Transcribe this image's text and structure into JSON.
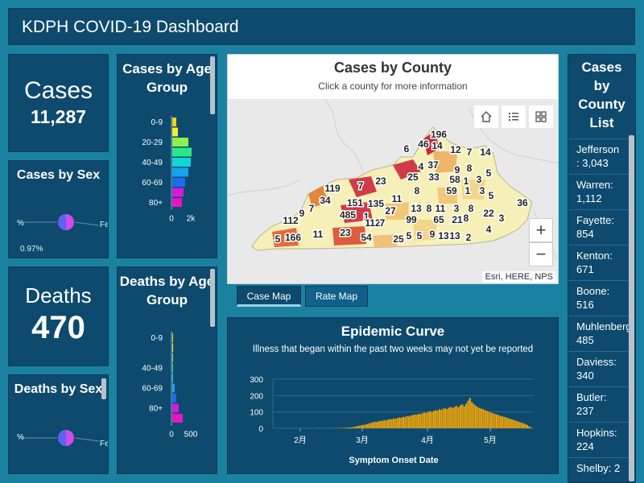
{
  "header": {
    "title": "KDPH COVID-19 Dashboard"
  },
  "cases": {
    "label": "Cases",
    "value": "11,287"
  },
  "deaths": {
    "label": "Deaths",
    "value": "470"
  },
  "cases_by_sex": {
    "title": "Cases by Sex",
    "left_label": "%",
    "right_label": "Fe",
    "pct_label": "0.97%"
  },
  "deaths_by_sex": {
    "title": "Deaths by Sex",
    "left_label": "%",
    "right_label": "Fe"
  },
  "cases_age": {
    "title": "Cases by Age Group",
    "visible_labels": [
      "0-9",
      "20-29",
      "40-49",
      "60-69",
      "80+"
    ],
    "x_ticks": [
      "0",
      "2k"
    ],
    "colors": [
      "#f1d319",
      "#f6ef2a",
      "#8ff04d",
      "#27e88a",
      "#10d6d6",
      "#15a6ec",
      "#1c6bf2",
      "#d41bd9",
      "#e815c5"
    ]
  },
  "deaths_age": {
    "title": "Deaths by Age Group",
    "visible_labels": [
      "0-9",
      "40-49",
      "60-69",
      "80+"
    ],
    "x_ticks": [
      "0",
      "500"
    ],
    "colors": [
      "#f1d319",
      "#f6ef2a",
      "#8ff04d",
      "#27e88a",
      "#10d6d6",
      "#15a6ec",
      "#1c6bf2",
      "#d41bd9",
      "#e815c5"
    ]
  },
  "map": {
    "title": "Cases by County",
    "subtitle": "Click a county for more information",
    "attribution": "Esri, HERE, NPS",
    "zoom_in": "+",
    "zoom_out": "−",
    "county_labels": [
      {
        "t": "196"
      },
      {
        "t": "46"
      },
      {
        "t": "14"
      },
      {
        "t": "12"
      },
      {
        "t": "7"
      },
      {
        "t": "14"
      },
      {
        "t": "6"
      },
      {
        "t": "37"
      },
      {
        "t": "4"
      },
      {
        "t": "9"
      },
      {
        "t": "8"
      },
      {
        "t": "5"
      },
      {
        "t": "25"
      },
      {
        "t": "33"
      },
      {
        "t": "58"
      },
      {
        "t": "1"
      },
      {
        "t": "3"
      },
      {
        "t": "119"
      },
      {
        "t": "7"
      },
      {
        "t": "23"
      },
      {
        "t": "8"
      },
      {
        "t": "59"
      },
      {
        "t": "1"
      },
      {
        "t": "3"
      },
      {
        "t": "5"
      },
      {
        "t": "34"
      },
      {
        "t": "151"
      },
      {
        "t": "135"
      },
      {
        "t": "11"
      },
      {
        "t": "36"
      },
      {
        "t": "112"
      },
      {
        "t": "9"
      },
      {
        "t": "7"
      },
      {
        "t": "485"
      },
      {
        "t": "1"
      },
      {
        "t": "27"
      },
      {
        "t": "13"
      },
      {
        "t": "8"
      },
      {
        "t": "11"
      },
      {
        "t": "3"
      },
      {
        "t": "8"
      },
      {
        "t": "22"
      },
      {
        "t": "3"
      },
      {
        "t": "112"
      },
      {
        "t": "7"
      },
      {
        "t": "99"
      },
      {
        "t": "65"
      },
      {
        "t": "21"
      },
      {
        "t": "8"
      },
      {
        "t": "5"
      },
      {
        "t": "166"
      },
      {
        "t": "11"
      },
      {
        "t": "23"
      },
      {
        "t": "54"
      },
      {
        "t": "25"
      },
      {
        "t": "5"
      },
      {
        "t": "5"
      },
      {
        "t": "9"
      },
      {
        "t": "13"
      },
      {
        "t": "13"
      },
      {
        "t": "2"
      },
      {
        "t": "4"
      }
    ]
  },
  "tabs": {
    "case_map": "Case Map",
    "rate_map": "Rate Map"
  },
  "curve": {
    "title": "Epidemic Curve",
    "subtitle": "Illness that began within the past two weeks may not yet be reported",
    "xlabel": "Symptom Onset Date"
  },
  "county_list": {
    "title": "Cases by County List",
    "items": [
      "Jefferson : 3,043",
      "Warren: 1,112",
      "Fayette: 854",
      "Kenton: 671",
      "Boone: 516",
      "Muhlenberg: 485",
      "Daviess: 340",
      "Butler: 237",
      "Hopkins: 224",
      "Shelby: 2"
    ]
  },
  "chart_data": {
    "type": "bar",
    "title": "Epidemic Curve",
    "subtitle": "Illness that began within the past two weeks may not yet be reported",
    "xlabel": "Symptom Onset Date",
    "ylabel": "",
    "ylim": [
      0,
      300
    ],
    "y_ticks": [
      "0",
      "100",
      "200",
      "300"
    ],
    "x_ticks": [
      "2月",
      "3月",
      "4月",
      "5月"
    ],
    "color": "#e8a10d",
    "values": [
      0,
      0,
      0,
      0,
      0,
      0,
      0,
      0,
      0,
      0,
      0,
      0,
      0,
      0,
      0,
      0,
      0,
      1,
      0,
      0,
      1,
      0,
      0,
      1,
      1,
      1,
      0,
      1,
      1,
      2,
      2,
      3,
      3,
      4,
      5,
      6,
      8,
      10,
      13,
      16,
      18,
      20,
      22,
      26,
      30,
      33,
      36,
      40,
      38,
      42,
      46,
      44,
      50,
      48,
      52,
      56,
      54,
      60,
      58,
      62,
      66,
      64,
      70,
      68,
      74,
      72,
      78,
      80,
      84,
      82,
      88,
      86,
      92,
      96,
      94,
      100,
      104,
      98,
      106,
      110,
      108,
      116,
      112,
      120,
      122,
      118,
      126,
      130,
      124,
      132,
      136,
      128,
      140,
      146,
      134,
      150,
      168,
      185,
      160,
      148,
      138,
      130,
      124,
      120,
      116,
      110,
      106,
      102,
      96,
      92,
      88,
      84,
      80,
      76,
      72,
      70,
      66,
      62,
      58,
      54,
      50,
      46,
      42,
      38,
      34,
      30,
      26,
      20,
      12,
      5
    ]
  }
}
